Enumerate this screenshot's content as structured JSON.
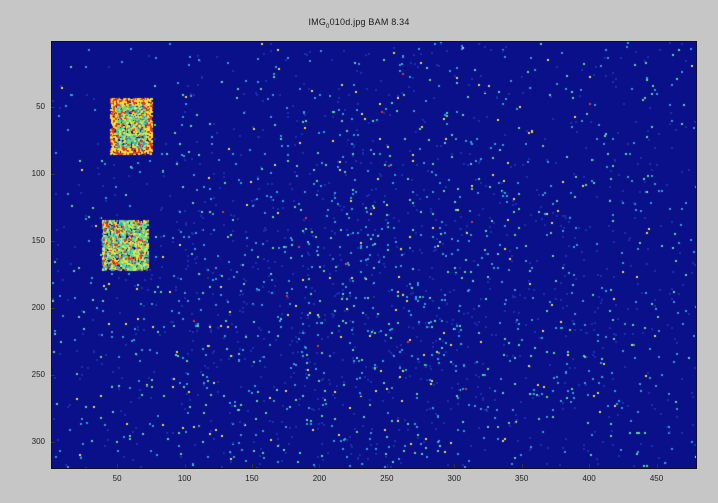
{
  "window": {
    "title": "IMG_010d.jpg BAM 8.34",
    "title_prefix": "IMG",
    "title_subscript": "0",
    "title_suffix": "010d.jpg BAM 8.34"
  },
  "chart_data": {
    "type": "heatmap",
    "title": "IMG_010d.jpg BAM 8.34",
    "xlabel": "",
    "ylabel": "",
    "x_ticks": [
      "50",
      "100",
      "150",
      "200",
      "250",
      "300",
      "350",
      "400",
      "450"
    ],
    "y_ticks": [
      "50",
      "100",
      "150",
      "200",
      "250",
      "300"
    ],
    "xlim": [
      1,
      480
    ],
    "ylim": [
      1,
      320
    ],
    "y_axis_direction": "top-to-bottom",
    "colormap": "jet",
    "colors": {
      "background": "#0a0f8a",
      "low": "#1a2fb0",
      "mid_low": "#2aa6d8",
      "mid": "#5ce08a",
      "high": "#f4e03a",
      "peak": "#e03a1a"
    },
    "grid": false,
    "legend": "none",
    "notes_visible": []
  }
}
